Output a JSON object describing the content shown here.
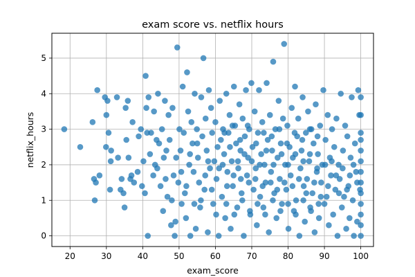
{
  "chart_data": {
    "type": "scatter",
    "title": "exam score vs. netflix hours",
    "xlabel": "exam_score",
    "ylabel": "netflix_hours",
    "xlim": [
      15,
      103.5
    ],
    "ylim": [
      -0.3,
      5.7
    ],
    "xticks": [
      20,
      30,
      40,
      50,
      60,
      70,
      80,
      90,
      100
    ],
    "yticks": [
      0,
      1,
      2,
      3,
      4,
      5
    ],
    "grid": true,
    "point_color": "#1f77b4",
    "series": [
      {
        "points": [
          [
            18.4,
            3.0
          ],
          [
            22.8,
            2.5
          ],
          [
            26.2,
            3.2
          ],
          [
            26.6,
            1.6
          ],
          [
            26.8,
            1.0
          ],
          [
            27.1,
            1.5
          ],
          [
            27.5,
            4.1
          ],
          [
            28.1,
            1.7
          ],
          [
            29.6,
            3.9
          ],
          [
            29.9,
            2.5
          ],
          [
            30.0,
            3.4
          ],
          [
            30.3,
            3.8
          ],
          [
            30.6,
            2.9
          ],
          [
            31.0,
            1.3
          ],
          [
            31.2,
            2.1
          ],
          [
            31.3,
            2.4
          ],
          [
            32.9,
            3.9
          ],
          [
            33.2,
            2.2
          ],
          [
            33.9,
            1.3
          ],
          [
            34.2,
            1.6
          ],
          [
            34.7,
            1.2
          ],
          [
            35.0,
            0.8
          ],
          [
            35.3,
            3.6
          ],
          [
            35.5,
            2.7
          ],
          [
            35.9,
            3.8
          ],
          [
            36.1,
            2.2
          ],
          [
            36.6,
            1.6
          ],
          [
            36.9,
            1.7
          ],
          [
            37.2,
            3.2
          ],
          [
            37.6,
            1.5
          ],
          [
            38.6,
            1.8
          ],
          [
            38.9,
            2.8
          ],
          [
            39.5,
            3.0
          ],
          [
            39.8,
            1.4
          ],
          [
            40.2,
            2.1
          ],
          [
            40.6,
            1.2
          ],
          [
            40.8,
            4.5
          ],
          [
            41.0,
            3.6
          ],
          [
            41.2,
            2.9
          ],
          [
            41.4,
            0.0
          ],
          [
            41.6,
            3.9
          ],
          [
            42.0,
            2.3
          ],
          [
            42.3,
            2.9
          ],
          [
            42.9,
            1.7
          ],
          [
            43.1,
            3.5
          ],
          [
            43.4,
            2.0
          ],
          [
            43.8,
            2.7
          ],
          [
            44.2,
            4.0
          ],
          [
            44.5,
            2.6
          ],
          [
            44.9,
            1.4
          ],
          [
            45.3,
            3.0
          ],
          [
            45.6,
            0.7
          ],
          [
            45.8,
            2.2
          ],
          [
            46.1,
            3.8
          ],
          [
            46.5,
            2.4
          ],
          [
            46.8,
            1.1
          ],
          [
            47.1,
            3.4
          ],
          [
            47.4,
            2.7
          ],
          [
            47.8,
            0.3
          ],
          [
            48.2,
            3.6
          ],
          [
            48.5,
            1.7
          ],
          [
            48.8,
            0.0
          ],
          [
            49.2,
            2.2
          ],
          [
            49.5,
            5.3
          ],
          [
            49.8,
            1.5
          ],
          [
            50.1,
            3.0
          ],
          [
            50.4,
            2.4
          ],
          [
            50.7,
            0.9
          ],
          [
            51.0,
            4.2
          ],
          [
            51.3,
            2.9
          ],
          [
            51.6,
            1.2
          ],
          [
            51.9,
            0.5
          ],
          [
            52.2,
            4.6
          ],
          [
            52.5,
            3.5
          ],
          [
            52.8,
            2.0
          ],
          [
            53.1,
            0.0
          ],
          [
            53.4,
            3.2
          ],
          [
            53.7,
            2.6
          ],
          [
            54.0,
            1.8
          ],
          [
            54.3,
            4.0
          ],
          [
            54.6,
            0.2
          ],
          [
            54.9,
            3.0
          ],
          [
            55.2,
            2.2
          ],
          [
            55.5,
            1.5
          ],
          [
            55.8,
            0.8
          ],
          [
            56.1,
            3.9
          ],
          [
            56.4,
            2.8
          ],
          [
            56.7,
            5.0
          ],
          [
            57.0,
            1.3
          ],
          [
            57.3,
            3.3
          ],
          [
            57.6,
            2.4
          ],
          [
            57.9,
            0.1
          ],
          [
            58.2,
            4.1
          ],
          [
            58.5,
            1.9
          ],
          [
            58.8,
            3.6
          ],
          [
            59.1,
            2.9
          ],
          [
            59.4,
            0.9
          ],
          [
            59.7,
            2.1
          ],
          [
            60.0,
            3.2
          ],
          [
            60.3,
            1.6
          ],
          [
            60.6,
            2.5
          ],
          [
            60.9,
            0.0
          ],
          [
            61.2,
            3.8
          ],
          [
            61.5,
            2.7
          ],
          [
            61.8,
            1.1
          ],
          [
            62.1,
            3.0
          ],
          [
            62.4,
            2.3
          ],
          [
            62.7,
            0.5
          ],
          [
            63.0,
            4.0
          ],
          [
            63.3,
            1.8
          ],
          [
            63.6,
            2.9
          ],
          [
            63.9,
            3.4
          ],
          [
            64.2,
            0.2
          ],
          [
            64.5,
            2.1
          ],
          [
            64.8,
            1.4
          ],
          [
            65.1,
            4.2
          ],
          [
            65.4,
            3.1
          ],
          [
            65.7,
            2.6
          ],
          [
            66.0,
            0.8
          ],
          [
            66.3,
            1.9
          ],
          [
            66.6,
            3.7
          ],
          [
            66.9,
            2.4
          ],
          [
            67.2,
            1.2
          ],
          [
            67.5,
            3.3
          ],
          [
            67.8,
            0.0
          ],
          [
            68.1,
            2.8
          ],
          [
            68.4,
            4.1
          ],
          [
            68.7,
            1.7
          ],
          [
            69.0,
            2.2
          ],
          [
            69.3,
            3.0
          ],
          [
            69.6,
            0.6
          ],
          [
            69.9,
            4.3
          ],
          [
            70.2,
            2.5
          ],
          [
            70.5,
            1.3
          ],
          [
            70.8,
            3.5
          ],
          [
            71.1,
            1.9
          ],
          [
            71.4,
            0.3
          ],
          [
            71.7,
            2.9
          ],
          [
            72.0,
            4.1
          ],
          [
            72.3,
            1.1
          ],
          [
            72.6,
            2.3
          ],
          [
            72.9,
            3.2
          ],
          [
            73.2,
            0.8
          ],
          [
            73.5,
            2.0
          ],
          [
            73.8,
            1.5
          ],
          [
            74.1,
            4.3
          ],
          [
            74.4,
            2.7
          ],
          [
            74.7,
            0.1
          ],
          [
            75.0,
            3.4
          ],
          [
            75.3,
            1.8
          ],
          [
            75.6,
            2.4
          ],
          [
            75.9,
            4.9
          ],
          [
            76.2,
            1.2
          ],
          [
            76.5,
            3.0
          ],
          [
            76.8,
            0.5
          ],
          [
            77.1,
            2.2
          ],
          [
            77.4,
            3.8
          ],
          [
            77.7,
            1.6
          ],
          [
            78.0,
            2.6
          ],
          [
            78.3,
            0.9
          ],
          [
            78.6,
            3.3
          ],
          [
            78.9,
            5.4
          ],
          [
            79.2,
            2.0
          ],
          [
            79.5,
            1.3
          ],
          [
            79.8,
            3.1
          ],
          [
            80.1,
            0.2
          ],
          [
            80.4,
            2.5
          ],
          [
            80.7,
            1.7
          ],
          [
            81.0,
            3.6
          ],
          [
            81.3,
            2.2
          ],
          [
            81.6,
            0.7
          ],
          [
            81.9,
            4.2
          ],
          [
            82.2,
            1.0
          ],
          [
            82.5,
            2.8
          ],
          [
            82.8,
            3.3
          ],
          [
            83.1,
            0.0
          ],
          [
            83.4,
            1.9
          ],
          [
            83.7,
            2.4
          ],
          [
            84.0,
            3.9
          ],
          [
            84.3,
            1.4
          ],
          [
            84.6,
            0.4
          ],
          [
            84.9,
            2.9
          ],
          [
            85.2,
            1.6
          ],
          [
            85.5,
            3.5
          ],
          [
            85.8,
            2.1
          ],
          [
            86.1,
            0.8
          ],
          [
            86.4,
            3.0
          ],
          [
            86.7,
            1.2
          ],
          [
            87.0,
            2.6
          ],
          [
            87.3,
            0.1
          ],
          [
            87.6,
            3.7
          ],
          [
            87.9,
            1.8
          ],
          [
            88.2,
            2.3
          ],
          [
            88.5,
            0.5
          ],
          [
            88.8,
            3.1
          ],
          [
            89.1,
            1.5
          ],
          [
            89.4,
            2.0
          ],
          [
            89.7,
            4.1
          ],
          [
            90.0,
            0.9
          ],
          [
            90.3,
            2.7
          ],
          [
            90.6,
            1.1
          ],
          [
            90.9,
            3.4
          ],
          [
            91.2,
            0.3
          ],
          [
            91.5,
            2.2
          ],
          [
            91.8,
            1.7
          ],
          [
            92.1,
            3.0
          ],
          [
            92.4,
            0.6
          ],
          [
            92.7,
            2.5
          ],
          [
            93.0,
            1.3
          ],
          [
            93.3,
            3.3
          ],
          [
            93.6,
            0.0
          ],
          [
            93.9,
            2.0
          ],
          [
            94.2,
            1.6
          ],
          [
            94.5,
            4.0
          ],
          [
            94.8,
            0.8
          ],
          [
            95.1,
            2.4
          ],
          [
            95.4,
            1.1
          ],
          [
            95.7,
            3.1
          ],
          [
            96.0,
            0.2
          ],
          [
            96.3,
            2.8
          ],
          [
            96.6,
            1.4
          ],
          [
            96.9,
            0.5
          ],
          [
            97.2,
            2.2
          ],
          [
            97.5,
            3.9
          ],
          [
            97.8,
            1.0
          ],
          [
            98.1,
            0.0
          ],
          [
            98.4,
            2.6
          ],
          [
            98.7,
            1.8
          ],
          [
            99.0,
            0.4
          ],
          [
            99.3,
            4.1
          ],
          [
            99.6,
            3.4
          ],
          [
            99.8,
            1.3
          ],
          [
            100.0,
            0.0
          ],
          [
            100.0,
            0.3
          ],
          [
            100.0,
            0.6
          ],
          [
            100.0,
            0.9
          ],
          [
            100.0,
            1.2
          ],
          [
            100.0,
            1.5
          ],
          [
            100.0,
            1.8
          ],
          [
            100.0,
            2.1
          ],
          [
            100.0,
            2.4
          ],
          [
            100.0,
            2.7
          ],
          [
            100.0,
            2.9
          ],
          [
            100.0,
            3.4
          ],
          [
            100.0,
            3.9
          ],
          [
            44.0,
            1.9
          ],
          [
            46.3,
            1.6
          ],
          [
            48.0,
            1.0
          ],
          [
            49.0,
            0.4
          ],
          [
            50.6,
            1.8
          ],
          [
            52.0,
            1.4
          ],
          [
            53.0,
            2.3
          ],
          [
            54.2,
            0.9
          ],
          [
            55.0,
            2.6
          ],
          [
            56.0,
            1.0
          ],
          [
            57.2,
            1.7
          ],
          [
            58.0,
            2.1
          ],
          [
            59.0,
            1.3
          ],
          [
            60.2,
            0.6
          ],
          [
            61.0,
            1.9
          ],
          [
            62.0,
            2.0
          ],
          [
            63.2,
            1.4
          ],
          [
            64.0,
            2.5
          ],
          [
            65.0,
            1.7
          ],
          [
            66.2,
            2.1
          ],
          [
            67.0,
            1.6
          ],
          [
            68.0,
            2.3
          ],
          [
            69.2,
            1.5
          ],
          [
            70.0,
            2.1
          ],
          [
            71.0,
            1.6
          ],
          [
            72.2,
            2.0
          ],
          [
            73.0,
            1.4
          ],
          [
            74.0,
            2.4
          ],
          [
            75.2,
            1.5
          ],
          [
            76.0,
            2.0
          ],
          [
            77.0,
            1.3
          ],
          [
            78.2,
            2.3
          ],
          [
            79.0,
            1.5
          ],
          [
            80.0,
            2.0
          ],
          [
            81.2,
            1.4
          ],
          [
            82.0,
            2.3
          ],
          [
            83.0,
            1.6
          ],
          [
            84.2,
            2.1
          ],
          [
            85.0,
            1.2
          ],
          [
            86.0,
            2.3
          ],
          [
            87.2,
            1.5
          ],
          [
            88.0,
            1.9
          ],
          [
            89.0,
            1.1
          ],
          [
            90.2,
            2.0
          ],
          [
            91.0,
            1.4
          ],
          [
            92.0,
            2.1
          ],
          [
            93.2,
            1.7
          ],
          [
            94.0,
            1.2
          ],
          [
            95.0,
            1.9
          ],
          [
            96.2,
            1.3
          ],
          [
            97.0,
            1.7
          ],
          [
            98.0,
            2.0
          ],
          [
            99.0,
            1.5
          ],
          [
            62.5,
            2.9
          ],
          [
            64.7,
            3.1
          ],
          [
            66.8,
            2.7
          ],
          [
            68.9,
            3.1
          ],
          [
            71.2,
            2.6
          ],
          [
            73.3,
            2.9
          ],
          [
            75.5,
            2.8
          ],
          [
            77.6,
            3.0
          ],
          [
            79.7,
            2.6
          ],
          [
            81.8,
            2.9
          ],
          [
            83.9,
            2.7
          ],
          [
            86.0,
            3.0
          ],
          [
            88.1,
            2.8
          ],
          [
            63.0,
            0.9
          ],
          [
            65.2,
            0.6
          ],
          [
            67.4,
            1.0
          ],
          [
            69.5,
            0.7
          ],
          [
            71.6,
            0.9
          ],
          [
            73.7,
            0.6
          ],
          [
            75.8,
            1.0
          ],
          [
            77.9,
            0.7
          ],
          [
            80.0,
            0.9
          ],
          [
            82.1,
            0.6
          ],
          [
            84.2,
            1.0
          ],
          [
            86.3,
            0.7
          ],
          [
            88.4,
            0.9
          ]
        ]
      }
    ]
  }
}
